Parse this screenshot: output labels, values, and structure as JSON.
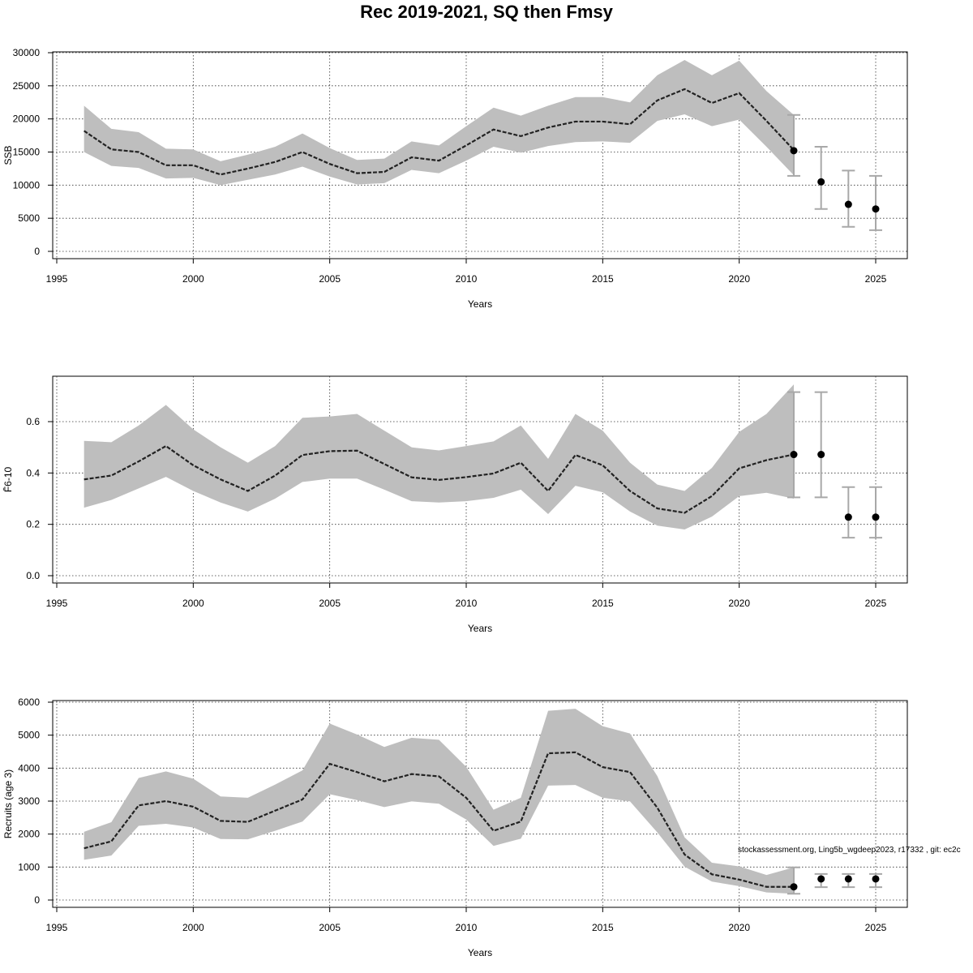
{
  "title": "Rec 2019-2021, SQ then Fmsy",
  "watermark": "stockassessment.org, Ling5b_wgdeep2023, r17332 , git: ec2c",
  "colors": {
    "band": "#bebebe",
    "line": "#222222",
    "errorbar": "#a8a8a8",
    "point": "#000000",
    "grid": "#333333"
  },
  "chart_data": [
    {
      "type": "line",
      "xlabel": "Years",
      "ylabel": "SSB",
      "xticks": [
        1995,
        2000,
        2005,
        2010,
        2015,
        2020,
        2025
      ],
      "yticks": [
        0,
        5000,
        10000,
        15000,
        20000,
        25000,
        30000
      ],
      "ylim": [
        0,
        30000
      ],
      "xlim": [
        1995,
        2026
      ],
      "grid": true,
      "estimate": {
        "x": [
          1996,
          1997,
          1998,
          1999,
          2000,
          2001,
          2002,
          2003,
          2004,
          2005,
          2006,
          2007,
          2008,
          2009,
          2010,
          2011,
          2012,
          2013,
          2014,
          2015,
          2016,
          2017,
          2018,
          2019,
          2020,
          2021,
          2022
        ],
        "y": [
          18200,
          15400,
          15000,
          13000,
          13000,
          11600,
          12500,
          13500,
          15000,
          13200,
          11800,
          12000,
          14200,
          13700,
          16000,
          18400,
          17400,
          18700,
          19600,
          19600,
          19200,
          22800,
          24500,
          22400,
          23900,
          19700,
          15300
        ],
        "lower": [
          15000,
          12900,
          12600,
          11000,
          11100,
          10000,
          10800,
          11600,
          12800,
          11300,
          10100,
          10300,
          12300,
          11800,
          13700,
          15800,
          14900,
          15900,
          16500,
          16600,
          16400,
          19700,
          20700,
          18900,
          19900,
          15800,
          11500
        ],
        "upper": [
          22000,
          18500,
          18000,
          15500,
          15400,
          13600,
          14600,
          15800,
          17800,
          15600,
          13800,
          14000,
          16600,
          16000,
          18900,
          21700,
          20500,
          22000,
          23300,
          23300,
          22500,
          26600,
          28900,
          26600,
          28800,
          24200,
          20600
        ]
      },
      "forecast": {
        "x": [
          2022,
          2023,
          2024,
          2025
        ],
        "y": [
          15200,
          10500,
          7100,
          6400
        ],
        "lower": [
          11400,
          6400,
          3700,
          3200
        ],
        "upper": [
          20600,
          15800,
          12200,
          11400
        ]
      }
    },
    {
      "type": "line",
      "xlabel": "Years",
      "ylabel": "F̄6-10",
      "xticks": [
        1995,
        2000,
        2005,
        2010,
        2015,
        2020,
        2025
      ],
      "yticks": [
        0.0,
        0.2,
        0.4,
        0.6
      ],
      "ytick_labels": [
        "0.0",
        "0.2",
        "0.4",
        "0.6"
      ],
      "ylim": [
        0,
        0.75
      ],
      "xlim": [
        1995,
        2026
      ],
      "grid": true,
      "estimate": {
        "x": [
          1996,
          1997,
          1998,
          1999,
          2000,
          2001,
          2002,
          2003,
          2004,
          2005,
          2006,
          2007,
          2008,
          2009,
          2010,
          2011,
          2012,
          2013,
          2014,
          2015,
          2016,
          2017,
          2018,
          2019,
          2020,
          2021,
          2022
        ],
        "y": [
          0.375,
          0.39,
          0.445,
          0.505,
          0.43,
          0.375,
          0.33,
          0.39,
          0.47,
          0.485,
          0.487,
          0.435,
          0.383,
          0.373,
          0.384,
          0.398,
          0.44,
          0.33,
          0.47,
          0.43,
          0.33,
          0.262,
          0.245,
          0.31,
          0.418,
          0.45,
          0.472
        ],
        "lower": [
          0.265,
          0.295,
          0.34,
          0.385,
          0.33,
          0.285,
          0.25,
          0.3,
          0.365,
          0.378,
          0.378,
          0.335,
          0.29,
          0.285,
          0.29,
          0.303,
          0.335,
          0.24,
          0.35,
          0.325,
          0.25,
          0.195,
          0.18,
          0.23,
          0.31,
          0.323,
          0.3
        ],
        "upper": [
          0.525,
          0.52,
          0.585,
          0.665,
          0.57,
          0.5,
          0.44,
          0.505,
          0.615,
          0.62,
          0.63,
          0.565,
          0.5,
          0.488,
          0.505,
          0.523,
          0.585,
          0.455,
          0.63,
          0.565,
          0.44,
          0.355,
          0.33,
          0.42,
          0.56,
          0.63,
          0.745
        ]
      },
      "forecast": {
        "x": [
          2022,
          2023,
          2024,
          2025
        ],
        "y": [
          0.472,
          0.472,
          0.228,
          0.228
        ],
        "lower": [
          0.305,
          0.305,
          0.148,
          0.148
        ],
        "upper": [
          0.715,
          0.715,
          0.345,
          0.345
        ]
      }
    },
    {
      "type": "line",
      "xlabel": "Years",
      "ylabel": "Recruits (age 3)",
      "xticks": [
        1995,
        2000,
        2005,
        2010,
        2015,
        2020,
        2025
      ],
      "yticks": [
        0,
        1000,
        2000,
        3000,
        4000,
        5000,
        6000
      ],
      "ylim": [
        0,
        6000
      ],
      "xlim": [
        1995,
        2026
      ],
      "grid": true,
      "estimate": {
        "x": [
          1996,
          1997,
          1998,
          1999,
          2000,
          2001,
          2002,
          2003,
          2004,
          2005,
          2006,
          2007,
          2008,
          2009,
          2010,
          2011,
          2012,
          2013,
          2014,
          2015,
          2016,
          2017,
          2018,
          2019,
          2020,
          2021,
          2022
        ],
        "y": [
          1570,
          1780,
          2870,
          3000,
          2830,
          2400,
          2370,
          2710,
          3050,
          4130,
          3880,
          3600,
          3820,
          3750,
          3100,
          2100,
          2380,
          4450,
          4480,
          4030,
          3880,
          2800,
          1380,
          780,
          620,
          400,
          400
        ],
        "lower": [
          1220,
          1350,
          2250,
          2310,
          2200,
          1850,
          1840,
          2100,
          2380,
          3210,
          3030,
          2820,
          2990,
          2920,
          2440,
          1640,
          1860,
          3470,
          3490,
          3100,
          2990,
          2050,
          1010,
          560,
          420,
          230,
          190
        ],
        "upper": [
          2070,
          2360,
          3700,
          3900,
          3680,
          3140,
          3100,
          3500,
          3930,
          5350,
          5020,
          4640,
          4920,
          4860,
          4040,
          2740,
          3100,
          5740,
          5800,
          5270,
          5050,
          3760,
          1900,
          1130,
          1020,
          760,
          990
        ]
      },
      "forecast": {
        "x": [
          2022,
          2023,
          2024,
          2025
        ],
        "y": [
          400,
          640,
          640,
          640
        ],
        "lower": [
          190,
          390,
          390,
          390
        ],
        "upper": [
          990,
          790,
          790,
          790
        ]
      }
    }
  ]
}
